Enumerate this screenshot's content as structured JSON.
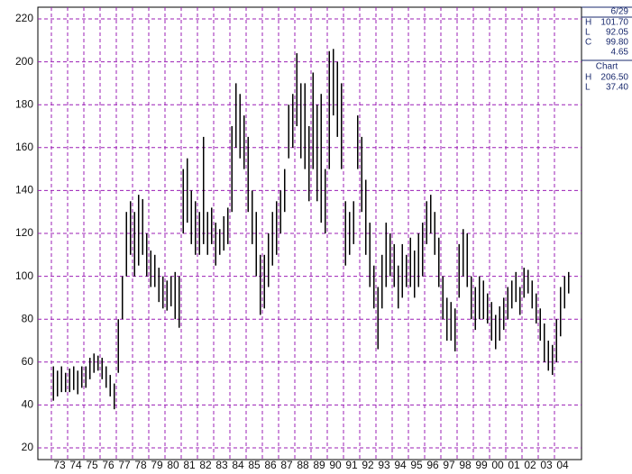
{
  "chart_data": {
    "type": "hl-bar",
    "categories": [
      "73",
      "74",
      "75",
      "76",
      "77",
      "78",
      "79",
      "80",
      "81",
      "82",
      "83",
      "84",
      "85",
      "86",
      "87",
      "88",
      "89",
      "90",
      "91",
      "92",
      "93",
      "94",
      "95",
      "96",
      "97",
      "98",
      "99",
      "00",
      "01",
      "02",
      "03",
      "04"
    ],
    "high": [
      58,
      56,
      58,
      55,
      57,
      58,
      56,
      58,
      58,
      62,
      64,
      63,
      62,
      58,
      54,
      50,
      80,
      100,
      130,
      135,
      130,
      138,
      136,
      120,
      112,
      110,
      104,
      100,
      98,
      100,
      102,
      100,
      150,
      155,
      140,
      135,
      130,
      165,
      130,
      132,
      125,
      122,
      128,
      132,
      170,
      190,
      185,
      175,
      165,
      140,
      130,
      110,
      110,
      120,
      130,
      135,
      140,
      150,
      180,
      185,
      204,
      190,
      190,
      170,
      195,
      180,
      185,
      150,
      205,
      206,
      200,
      190,
      135,
      130,
      135,
      175,
      165,
      145,
      125,
      105,
      95,
      110,
      125,
      120,
      115,
      105,
      115,
      110,
      118,
      112,
      120,
      125,
      135,
      138,
      130,
      118,
      100,
      90,
      88,
      85,
      115,
      122,
      120,
      100,
      95,
      100,
      98,
      92,
      88,
      82,
      86,
      90,
      95,
      98,
      102,
      95,
      104,
      103,
      98,
      92,
      85,
      78,
      70,
      68,
      80,
      95,
      100,
      102
    ],
    "low": [
      42,
      44,
      46,
      46,
      46,
      47,
      45,
      48,
      48,
      52,
      55,
      56,
      52,
      48,
      44,
      38,
      55,
      80,
      100,
      110,
      100,
      105,
      110,
      100,
      95,
      95,
      88,
      85,
      84,
      86,
      80,
      76,
      120,
      125,
      115,
      110,
      110,
      115,
      110,
      115,
      105,
      110,
      112,
      115,
      130,
      160,
      155,
      150,
      130,
      115,
      100,
      82,
      85,
      95,
      105,
      110,
      120,
      130,
      155,
      160,
      170,
      155,
      150,
      135,
      150,
      135,
      125,
      120,
      150,
      175,
      165,
      150,
      105,
      110,
      115,
      150,
      130,
      110,
      95,
      85,
      66,
      85,
      95,
      100,
      95,
      85,
      90,
      95,
      95,
      90,
      95,
      100,
      115,
      120,
      110,
      95,
      80,
      70,
      70,
      65,
      90,
      100,
      95,
      80,
      75,
      80,
      80,
      78,
      70,
      66,
      70,
      75,
      80,
      85,
      88,
      82,
      90,
      92,
      85,
      78,
      70,
      60,
      56,
      54,
      60,
      72,
      85,
      92
    ],
    "ylim": [
      20,
      220
    ],
    "yticks": [
      20,
      40,
      60,
      80,
      100,
      120,
      140,
      160,
      180,
      200,
      220
    ],
    "grid": true,
    "color": "#000000",
    "grid_color": "#9b1fb5",
    "panel": {
      "date": "6/29",
      "rows": [
        {
          "label": "H",
          "value": "101.70"
        },
        {
          "label": "L",
          "value": "92.05"
        },
        {
          "label": "C",
          "value": "99.80"
        },
        {
          "label": "",
          "value": "4.65"
        }
      ],
      "chart_title": "Chart",
      "chart_rows": [
        {
          "label": "H",
          "value": "206.50"
        },
        {
          "label": "L",
          "value": "37.40"
        }
      ]
    }
  }
}
